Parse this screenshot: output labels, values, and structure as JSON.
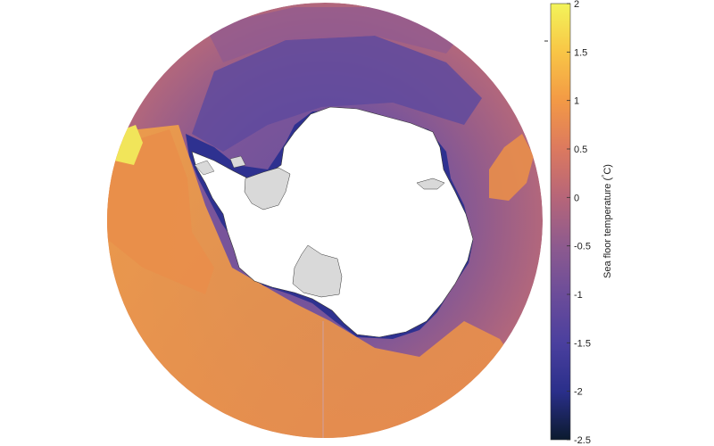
{
  "colorbar": {
    "label": "Sea floor temperature (",
    "label_degree": "°",
    "label_unit": "C)",
    "ticks": [
      "2",
      "1.5",
      "1",
      "0.5",
      "0",
      "-0.5",
      "-1",
      "-1.5",
      "-2",
      "-2.5"
    ],
    "min": -2.5,
    "max": 2,
    "colors": [
      "#0b1a2e",
      "#2a2f8a",
      "#4a3f9e",
      "#6b4c9a",
      "#8c5a8f",
      "#b86678",
      "#dd7a5e",
      "#f39a45",
      "#f8c646",
      "#f3f45a"
    ]
  },
  "map": {
    "ocean_colors": {
      "cold_shelf": "#2a2f8a",
      "cool": "#6a4f9c",
      "mid": "#b2677c",
      "warm": "#e68a4c",
      "hot": "#f4cf4f"
    },
    "land_color": "#ffffff",
    "ice_shelf_color": "#d9d9d9"
  }
}
